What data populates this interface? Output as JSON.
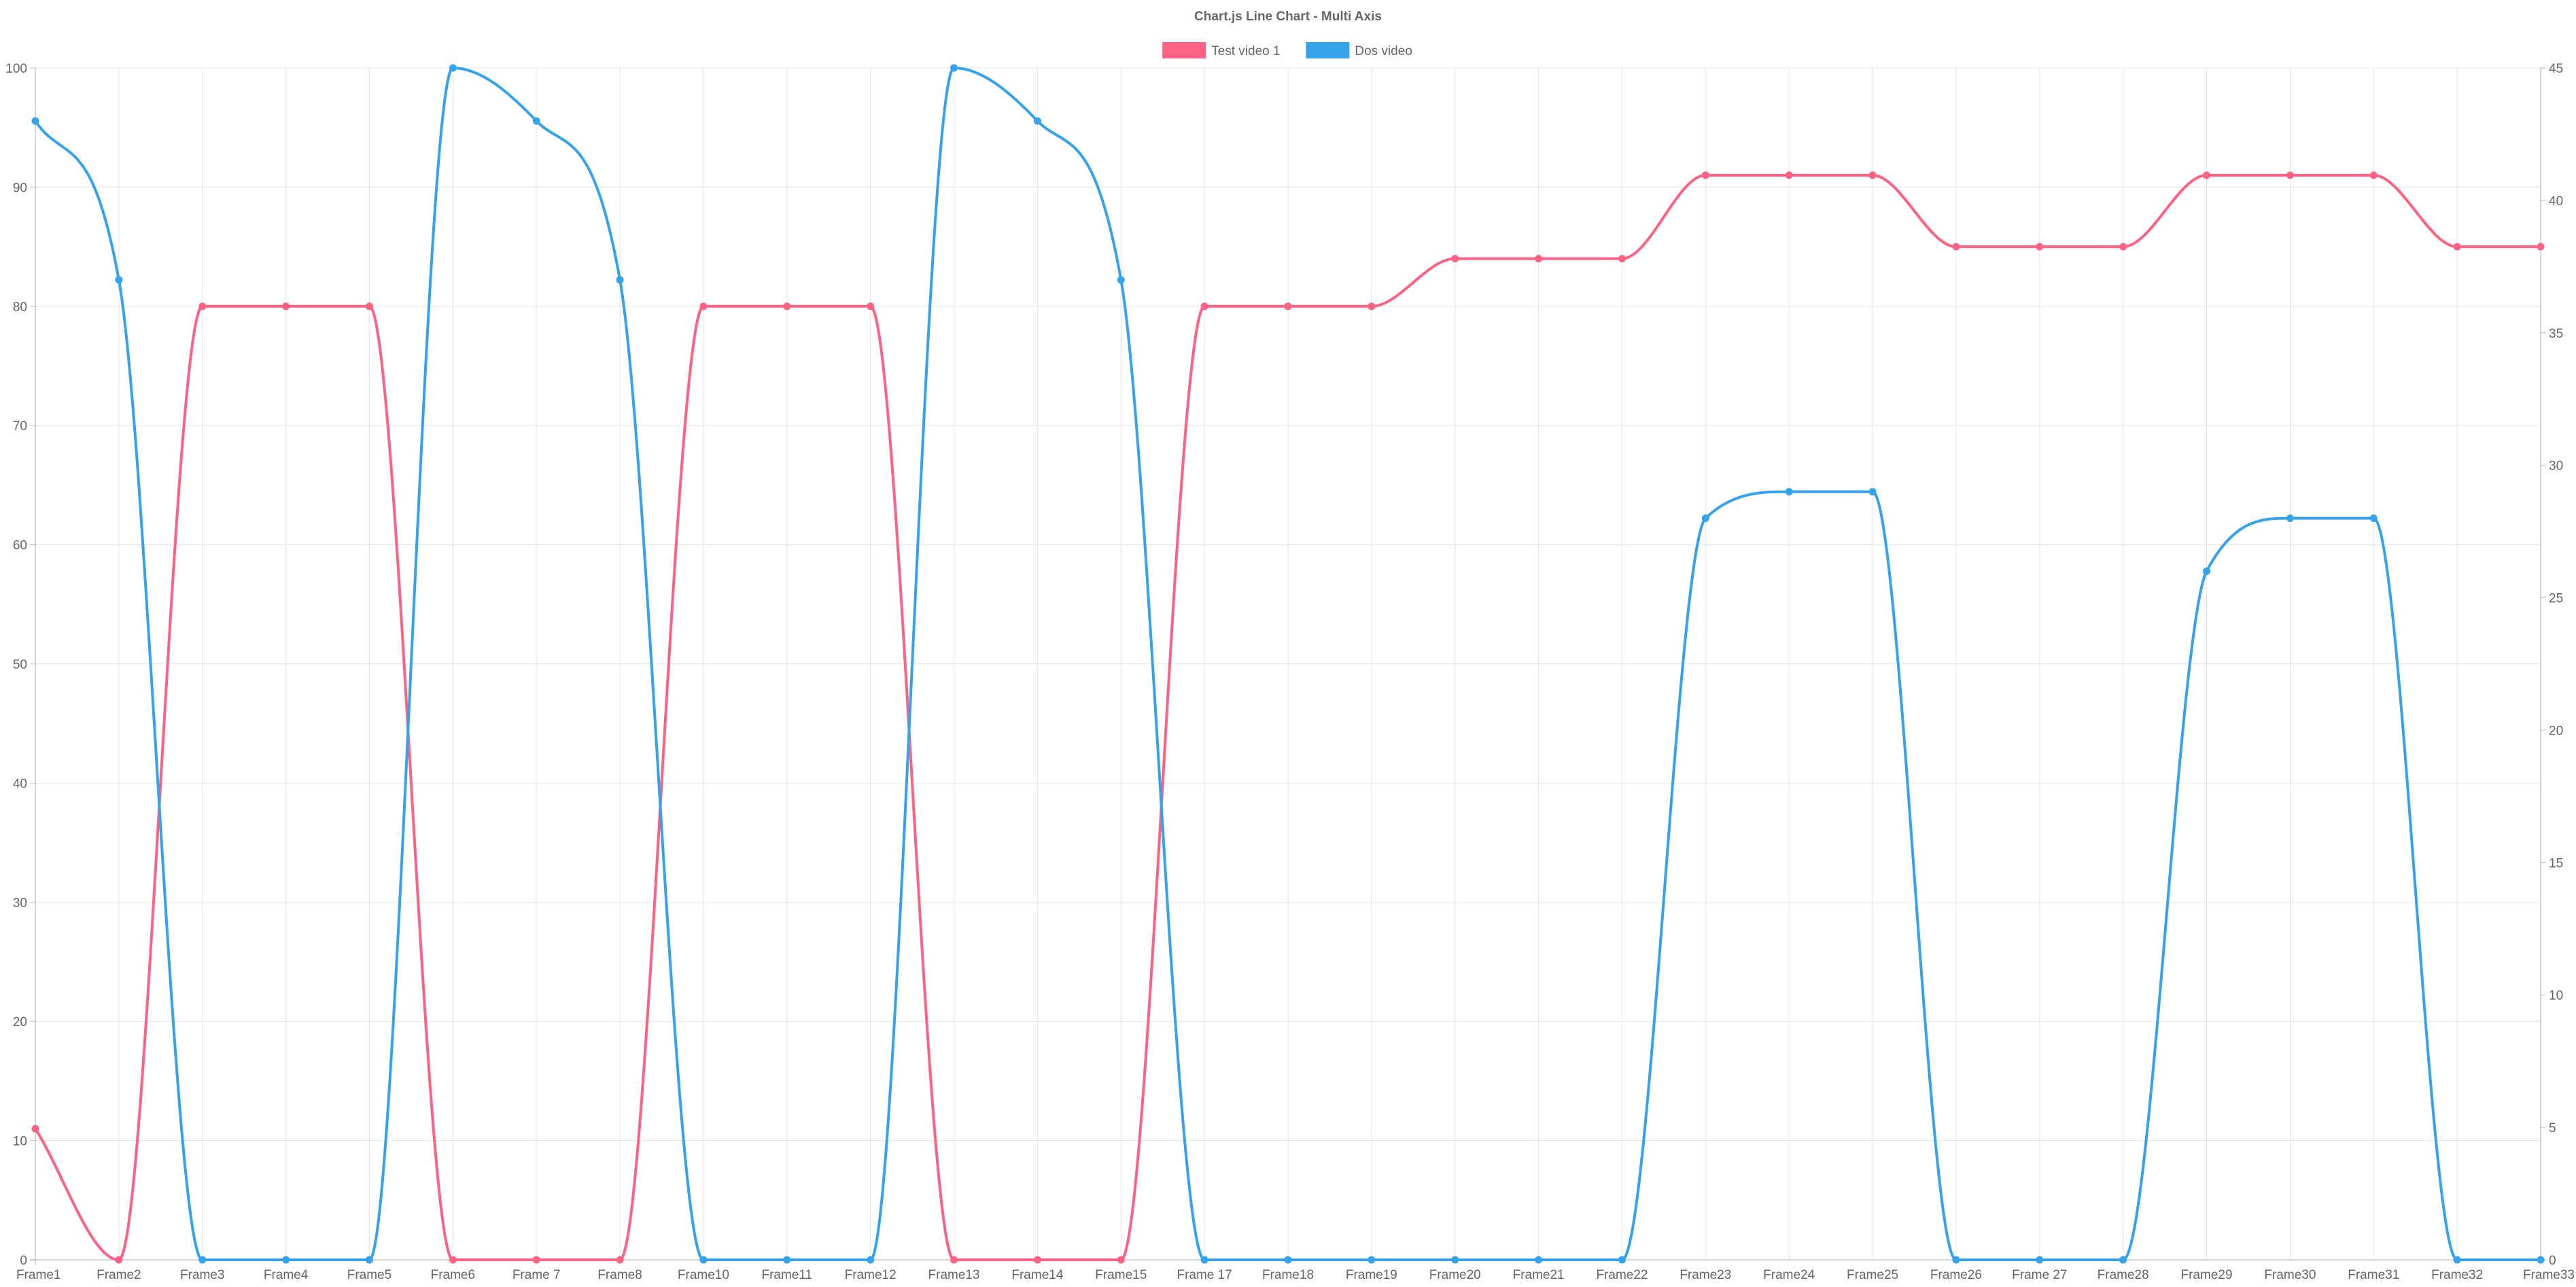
{
  "chart_data": {
    "type": "line",
    "title": "Chart.js Line Chart - Multi Axis",
    "legend_position": "top",
    "grid": true,
    "categories": [
      "Frame1",
      "Frame2",
      "Frame3",
      "Frame4",
      "Frame5",
      "Frame6",
      "Frame 7",
      "Frame8",
      "Frame10",
      "Frame11",
      "Frame12",
      "Frame13",
      "Frame14",
      "Frame15",
      "Frame 17",
      "Frame18",
      "Frame19",
      "Frame20",
      "Frame21",
      "Frame22",
      "Frame23",
      "Frame24",
      "Frame25",
      "Frame26",
      "Frame 27",
      "Frame28",
      "Frame29",
      "Frame30",
      "Frame31",
      "Frame32",
      "Frame33"
    ],
    "y_left": {
      "min": 0,
      "max": 100,
      "ticks": [
        "0",
        "10",
        "20",
        "30",
        "40",
        "50",
        "60",
        "70",
        "80",
        "90",
        "100"
      ]
    },
    "y_right": {
      "min": 0,
      "max": 45,
      "ticks": [
        "0",
        "5",
        "10",
        "15",
        "20",
        "25",
        "30",
        "35",
        "40",
        "45"
      ]
    },
    "series": [
      {
        "name": "Test video 1",
        "axis": "left",
        "color": "#ff6384",
        "values": [
          11,
          0,
          80,
          80,
          80,
          0,
          0,
          0,
          80,
          80,
          80,
          0,
          0,
          0,
          80,
          80,
          80,
          84,
          84,
          84,
          91,
          91,
          91,
          85,
          85,
          85,
          91,
          91,
          91,
          85,
          85
        ]
      },
      {
        "name": "Dos video",
        "axis": "right",
        "color": "#36a2eb",
        "values": [
          43,
          37,
          0,
          0,
          0,
          45,
          43,
          37,
          0,
          0,
          0,
          45,
          43,
          37,
          0,
          0,
          0,
          0,
          0,
          0,
          28,
          29,
          29,
          0,
          0,
          0,
          26,
          28,
          28,
          0,
          0
        ]
      }
    ]
  }
}
